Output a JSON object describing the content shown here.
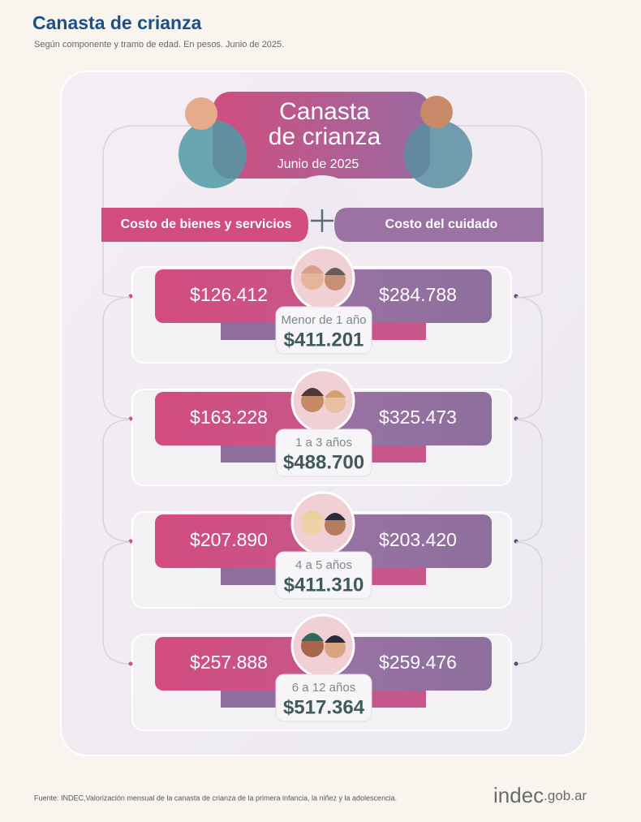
{
  "header": {
    "title": "Canasta de crianza",
    "subtitle": "Según componente y tramo de edad. En pesos. Junio de 2025."
  },
  "card": {
    "title_lines": [
      "Canasta",
      "de crianza"
    ],
    "date": "Junio de 2025"
  },
  "components": {
    "goods": "Costo de bienes y servicios",
    "care": "Costo del cuidado"
  },
  "rows": [
    {
      "age": "Menor de 1 año",
      "goods": "$126.412",
      "care": "$284.788",
      "total": "$411.201"
    },
    {
      "age": "1 a 3 años",
      "goods": "$163.228",
      "care": "$325.473",
      "total": "$488.700"
    },
    {
      "age": "4 a 5 años",
      "goods": "$207.890",
      "care": "$203.420",
      "total": "$411.310"
    },
    {
      "age": "6 a 12 años",
      "goods": "$257.888",
      "care": "$259.476",
      "total": "$517.364"
    }
  ],
  "footer": {
    "source": "Fuente: INDEC,Valorización mensual de la canasta de crianza de la primera infancia, la niñez y la adolescencia.",
    "logo": "indec",
    "logo_suffix": ".gob.ar"
  }
}
